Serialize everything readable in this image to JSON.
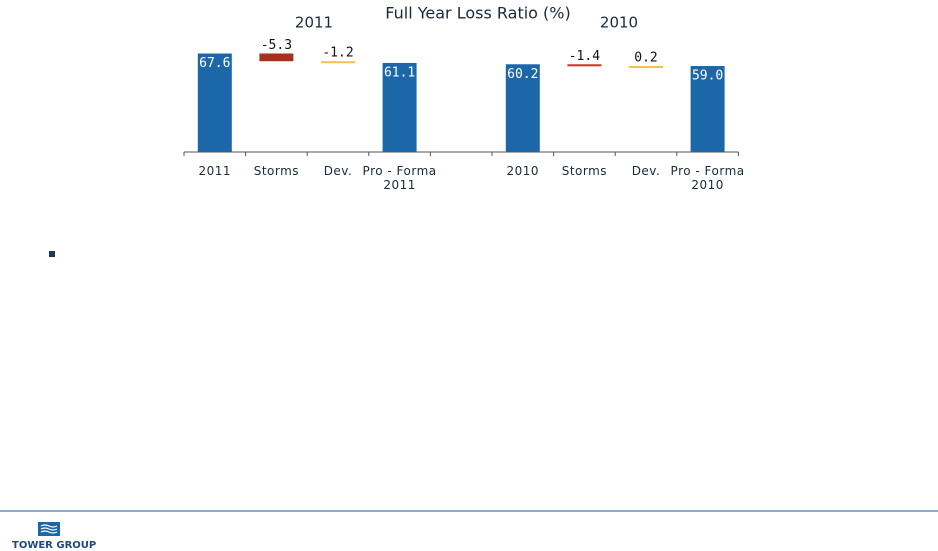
{
  "chart_data": {
    "type": "waterfall",
    "title": "Full Year Loss Ratio (%)",
    "group_labels": [
      "2011",
      "2010"
    ],
    "categories": [
      "2011",
      "Storms",
      "Dev.",
      "Pro - Forma 2011",
      null,
      "2010",
      "Storms",
      "Dev.",
      "Pro - Forma 2010"
    ],
    "measure": [
      "absolute",
      "relative",
      "relative",
      "absolute",
      null,
      "absolute",
      "relative",
      "relative",
      "absolute"
    ],
    "values": [
      67.6,
      -5.3,
      -1.2,
      61.1,
      null,
      60.2,
      -1.4,
      0.2,
      59.0
    ],
    "value_labels": [
      "67.6",
      "-5.3",
      "-1.2",
      "61.1",
      null,
      "60.2",
      "-1.4",
      "0.2",
      "59.0"
    ],
    "colors": [
      "#1c67a8",
      "#a8321f",
      "#f2c14e",
      "#1c67a8",
      null,
      "#1c67a8",
      "#c7372a",
      "#f2c14e",
      "#1c67a8"
    ],
    "ylim": [
      0,
      70
    ]
  },
  "footer": {
    "logo": "TOWER GROUP"
  }
}
